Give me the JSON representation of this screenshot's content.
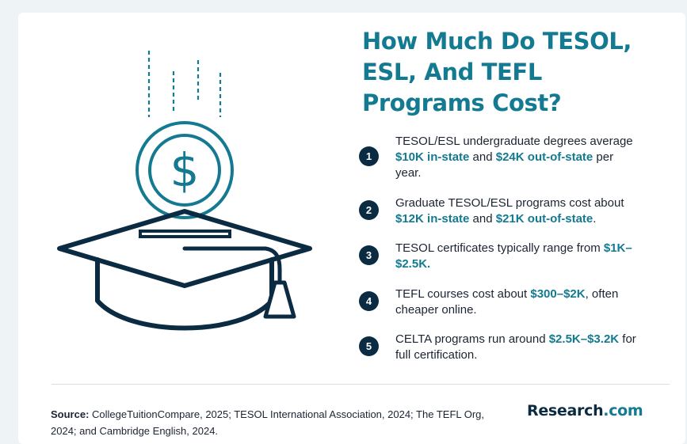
{
  "title": "How Much Do TESOL, ESL, And TEFL Programs Cost?",
  "items": [
    {
      "number": "1",
      "segments": [
        {
          "t": "TESOL/ESL undergraduate degrees average ",
          "h": false
        },
        {
          "t": "$10K in-state",
          "h": true
        },
        {
          "t": " and ",
          "h": false
        },
        {
          "t": "$24K out-of-state",
          "h": true
        },
        {
          "t": " per year.",
          "h": false
        }
      ]
    },
    {
      "number": "2",
      "segments": [
        {
          "t": "Graduate TESOL/ESL programs cost about ",
          "h": false
        },
        {
          "t": "$12K in-state",
          "h": true
        },
        {
          "t": " and ",
          "h": false
        },
        {
          "t": "$21K out-of-state",
          "h": true
        },
        {
          "t": ".",
          "h": false
        }
      ]
    },
    {
      "number": "3",
      "segments": [
        {
          "t": "TESOL certificates typically range from ",
          "h": false
        },
        {
          "t": "$1K–$2.5K.",
          "h": true
        }
      ]
    },
    {
      "number": "4",
      "segments": [
        {
          "t": "TEFL courses cost about ",
          "h": false
        },
        {
          "t": "$300–$2K",
          "h": true
        },
        {
          "t": ", often cheaper online.",
          "h": false
        }
      ]
    },
    {
      "number": "5",
      "segments": [
        {
          "t": "CELTA programs run around ",
          "h": false
        },
        {
          "t": "$2.5K–$3.2K",
          "h": true
        },
        {
          "t": " for full certification.",
          "h": false
        }
      ]
    }
  ],
  "source": {
    "label": "Source:",
    "text": " CollegeTuitionCompare, 2025; TESOL International Association, 2024; The TEFL Org, 2024; and Cambridge English, 2024."
  },
  "logo": {
    "name": "Research",
    "tld": ".com"
  },
  "icons": {
    "illustration": "graduation-cap-with-dollar-coin-icon",
    "coin": "dollar-coin-icon"
  },
  "colors": {
    "title": "#137a91",
    "highlight": "#137a91",
    "badge": "#0b2b42",
    "body_text": "#1c2433",
    "illustration_stroke": "#0b2b42",
    "illustration_accent": "#137a91",
    "background": "#eef3f6",
    "card": "#ffffff"
  }
}
